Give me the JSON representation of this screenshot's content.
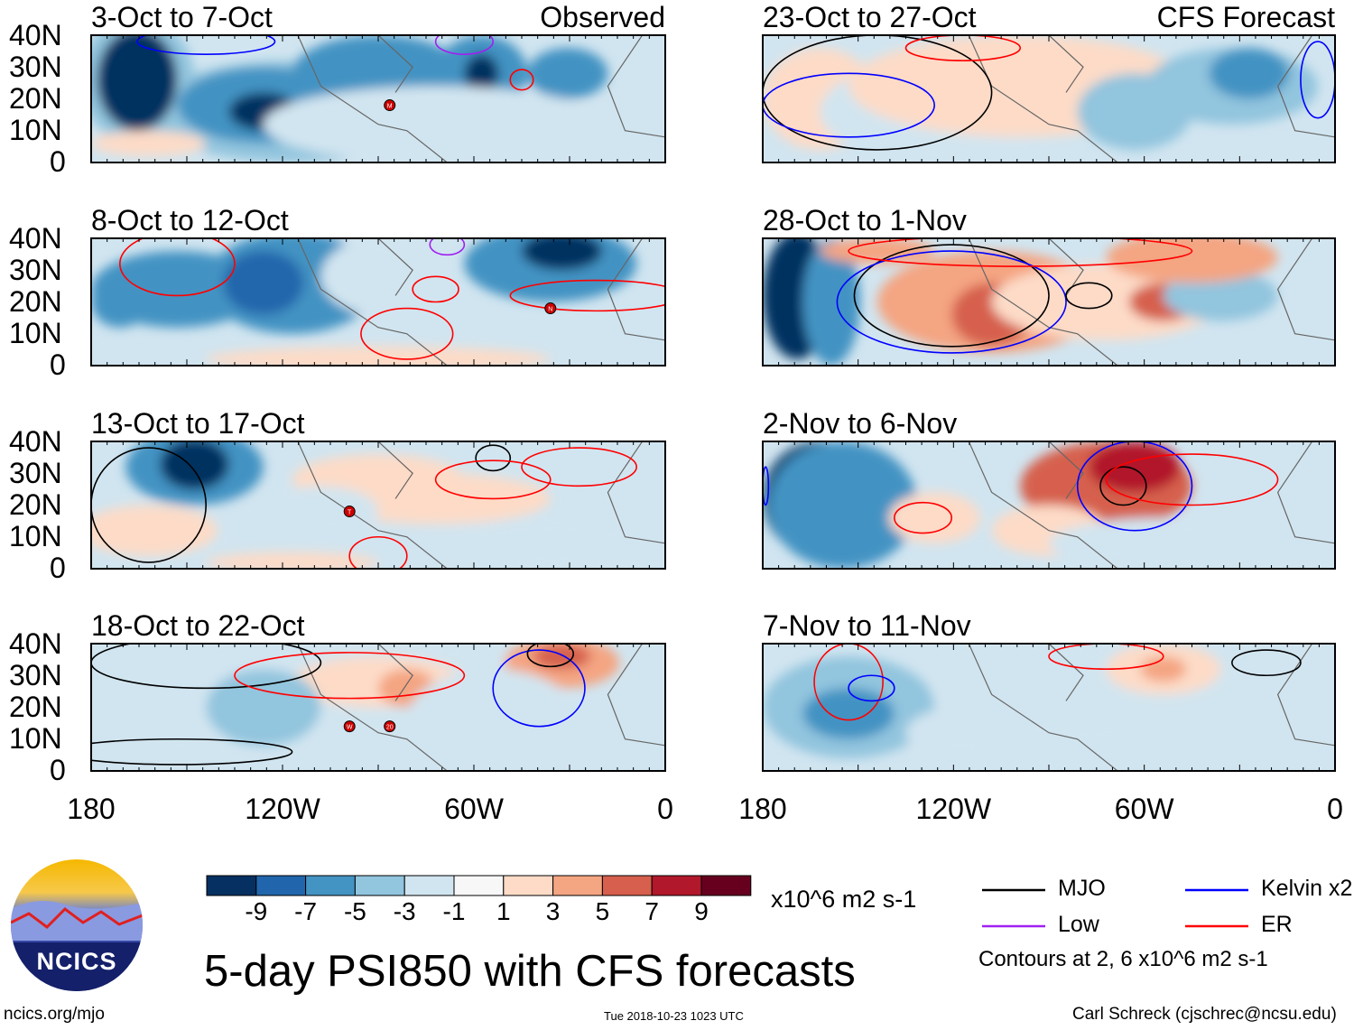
{
  "chart_data": {
    "type": "heatmap",
    "title": "5-day PSI850 with CFS forecasts",
    "units": "x10^6 m2 s-1",
    "column_headers": [
      "Observed",
      "CFS Forecast"
    ],
    "panels": [
      {
        "title": "3-Oct to 7-Oct",
        "column": "Observed",
        "storms": [
          "M"
        ]
      },
      {
        "title": "8-Oct to 12-Oct",
        "column": "Observed",
        "storms": [
          "N"
        ]
      },
      {
        "title": "13-Oct to 17-Oct",
        "column": "Observed",
        "storms": [
          "T"
        ]
      },
      {
        "title": "18-Oct to 22-Oct",
        "column": "Observed",
        "storms": [
          "W",
          "20"
        ]
      },
      {
        "title": "23-Oct to 27-Oct",
        "column": "CFS Forecast",
        "storms": []
      },
      {
        "title": "28-Oct to 1-Nov",
        "column": "CFS Forecast",
        "storms": []
      },
      {
        "title": "2-Nov to 6-Nov",
        "column": "CFS Forecast",
        "storms": []
      },
      {
        "title": "7-Nov to 11-Nov",
        "column": "CFS Forecast",
        "storms": []
      }
    ],
    "y_ticks": [
      "40N",
      "30N",
      "20N",
      "10N",
      "0"
    ],
    "x_ticks": [
      "180",
      "120W",
      "60W",
      "0"
    ],
    "colorbar": {
      "labels": [
        "-9",
        "-7",
        "-5",
        "-3",
        "-1",
        "1",
        "3",
        "5",
        "7",
        "9"
      ],
      "colors": [
        "#053061",
        "#2166ac",
        "#4393c3",
        "#92c5de",
        "#d1e5f0",
        "#f7f7f7",
        "#fddbc7",
        "#f4a582",
        "#d6604d",
        "#b2182b",
        "#67001f"
      ]
    },
    "legend": [
      {
        "label": "MJO",
        "color": "#000000"
      },
      {
        "label": "Kelvin x2",
        "color": "#0000ff"
      },
      {
        "label": "Low",
        "color": "#a020f0"
      },
      {
        "label": "ER",
        "color": "#ff0000"
      }
    ],
    "contour_note": "Contours at 2, 6 x10^6 m2 s-1"
  },
  "footer": {
    "logo_text": "NCICS",
    "url": "ncics.org/mjo",
    "timestamp": "Tue 2018-10-23 1023 UTC",
    "author": "Carl Schreck (cjschrec@ncsu.edu)"
  }
}
